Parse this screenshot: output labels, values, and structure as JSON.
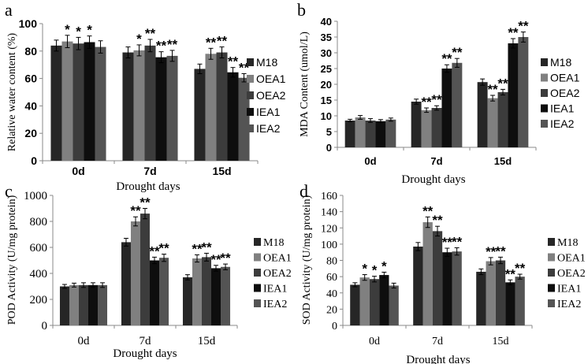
{
  "colors": {
    "M18": "#262626",
    "OEA1": "#808080",
    "OEA2": "#3c3c3c",
    "IEA1": "#0e0e0e",
    "IEA2": "#545454"
  },
  "chart_data": [
    {
      "panel": "a",
      "type": "bar",
      "categories": [
        "0d",
        "7d",
        "15d"
      ],
      "xlabel": "Drought days",
      "ylabel": "Relative water content (%)",
      "ylim": [
        0,
        100
      ],
      "yticks": [
        "0",
        "20",
        "40",
        "60",
        "80",
        "100"
      ],
      "series": [
        {
          "name": "M18",
          "values": [
            84,
            79,
            67
          ],
          "err": [
            4,
            4,
            3.5
          ],
          "sig": [
            "",
            "",
            ""
          ]
        },
        {
          "name": "OEA1",
          "values": [
            87,
            80.5,
            78
          ],
          "err": [
            4.5,
            4,
            4
          ],
          "sig": [
            "*",
            "*",
            "**"
          ]
        },
        {
          "name": "OEA2",
          "values": [
            85.5,
            84,
            79
          ],
          "err": [
            4.5,
            4.5,
            4
          ],
          "sig": [
            "*",
            "**",
            "**"
          ]
        },
        {
          "name": "IEA1",
          "values": [
            86.5,
            75.5,
            64.5
          ],
          "err": [
            4.5,
            4,
            3.5
          ],
          "sig": [
            "*",
            "**",
            "**"
          ]
        },
        {
          "name": "IEA2",
          "values": [
            83,
            76.5,
            60.5
          ],
          "err": [
            4.5,
            4,
            3
          ],
          "sig": [
            "",
            "**",
            "**"
          ]
        }
      ]
    },
    {
      "panel": "b",
      "type": "bar",
      "categories": [
        "0d",
        "7d",
        "15d"
      ],
      "xlabel": "Drought days",
      "ylabel": "MDA Content (umol/L)",
      "ylim": [
        0,
        40
      ],
      "yticks": [
        "0",
        "5",
        "10",
        "15",
        "20",
        "25",
        "30",
        "35",
        "40"
      ],
      "series": [
        {
          "name": "M18",
          "values": [
            8.5,
            14.5,
            20.7
          ],
          "err": [
            0.4,
            0.8,
            1
          ],
          "sig": [
            "",
            "",
            ""
          ]
        },
        {
          "name": "OEA1",
          "values": [
            9.5,
            11.8,
            15.6
          ],
          "err": [
            0.6,
            0.7,
            0.9
          ],
          "sig": [
            "",
            "**",
            "**"
          ]
        },
        {
          "name": "OEA2",
          "values": [
            8.5,
            12.5,
            17.5
          ],
          "err": [
            0.6,
            0.7,
            0.9
          ],
          "sig": [
            "",
            "**",
            "**"
          ]
        },
        {
          "name": "IEA1",
          "values": [
            8.3,
            25,
            33
          ],
          "err": [
            0.5,
            1.2,
            1.5
          ],
          "sig": [
            "",
            "**",
            "**"
          ]
        },
        {
          "name": "IEA2",
          "values": [
            8.8,
            26.8,
            35
          ],
          "err": [
            0.5,
            1.4,
            1.6
          ],
          "sig": [
            "",
            "**",
            "**"
          ]
        }
      ]
    },
    {
      "panel": "c",
      "type": "bar",
      "categories": [
        "0d",
        "7d",
        "15d"
      ],
      "xlabel": "Drought days",
      "ylabel": "POD Activity  (U/mg protein)",
      "ylim": [
        0,
        1000
      ],
      "yticks": [
        "0",
        "200",
        "400",
        "600",
        "800",
        "1000"
      ],
      "series": [
        {
          "name": "M18",
          "values": [
            300,
            640,
            370
          ],
          "err": [
            15,
            30,
            20
          ],
          "sig": [
            "",
            "",
            ""
          ]
        },
        {
          "name": "OEA1",
          "values": [
            310,
            800,
            515
          ],
          "err": [
            15,
            35,
            28
          ],
          "sig": [
            "",
            "**",
            "**"
          ]
        },
        {
          "name": "OEA2",
          "values": [
            310,
            860,
            525
          ],
          "err": [
            18,
            40,
            30
          ],
          "sig": [
            "",
            "**",
            "**"
          ]
        },
        {
          "name": "IEA1",
          "values": [
            310,
            500,
            440
          ],
          "err": [
            18,
            25,
            22
          ],
          "sig": [
            "",
            "**",
            "**"
          ]
        },
        {
          "name": "IEA2",
          "values": [
            310,
            520,
            450
          ],
          "err": [
            18,
            28,
            22
          ],
          "sig": [
            "",
            "**",
            "**"
          ]
        }
      ]
    },
    {
      "panel": "d",
      "type": "bar",
      "categories": [
        "0d",
        "7d",
        "15d"
      ],
      "xlabel": "Drought days",
      "ylabel": "SOD Activity  (U/mg protein)",
      "ylim": [
        0,
        160
      ],
      "yticks": [
        "0",
        "20",
        "40",
        "60",
        "80",
        "100",
        "120",
        "140",
        "160"
      ],
      "series": [
        {
          "name": "M18",
          "values": [
            50,
            97,
            66
          ],
          "err": [
            2.5,
            5,
            3.5
          ],
          "sig": [
            "",
            "",
            ""
          ]
        },
        {
          "name": "OEA1",
          "values": [
            59,
            127,
            79
          ],
          "err": [
            3.5,
            6.5,
            4.5
          ],
          "sig": [
            "*",
            "**",
            "**"
          ]
        },
        {
          "name": "OEA2",
          "values": [
            57,
            116,
            80
          ],
          "err": [
            3.5,
            6,
            4
          ],
          "sig": [
            "*",
            "**",
            "**"
          ]
        },
        {
          "name": "IEA1",
          "values": [
            62,
            90,
            53
          ],
          "err": [
            3.5,
            5,
            3
          ],
          "sig": [
            "*",
            "**",
            "**"
          ]
        },
        {
          "name": "IEA2",
          "values": [
            49,
            91,
            60
          ],
          "err": [
            3,
            4.5,
            3
          ],
          "sig": [
            "",
            "**",
            "**"
          ]
        }
      ]
    }
  ]
}
